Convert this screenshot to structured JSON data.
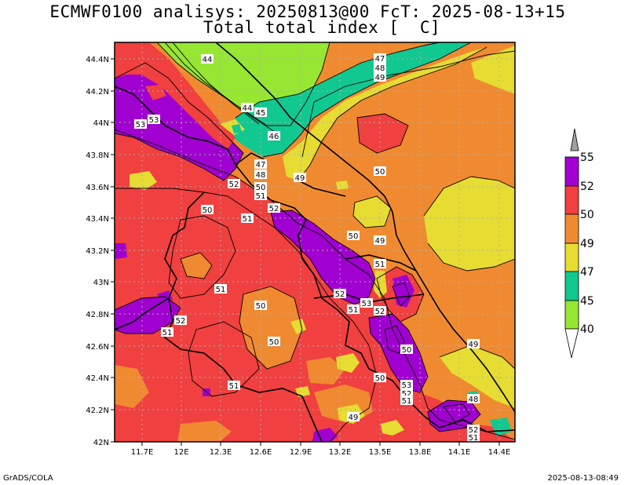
{
  "title_line1": "ECMWF0100 analisys: 20250813@00 FcT: 2025-08-13+15",
  "title_line2": "Total total index [  C]",
  "footer_left": "GrADS/COLA",
  "footer_right": "2025-08-13-08:49",
  "y_ticks": [
    "44.4N",
    "44.2N",
    "44N",
    "43.8N",
    "43.6N",
    "43.4N",
    "43.2N",
    "43N",
    "42.8N",
    "42.6N",
    "42.4N",
    "42.2N",
    "42N"
  ],
  "x_ticks": [
    "11.7E",
    "12E",
    "12.3E",
    "12.6E",
    "12.9E",
    "13.2E",
    "13.5E",
    "13.8E",
    "14.1E",
    "14.4E"
  ],
  "legend": {
    "levels": [
      "55",
      "52",
      "50",
      "49",
      "47",
      "45",
      "40"
    ],
    "colors": {
      "top": "#a0a0a0",
      "52-55": "#a000d0",
      "50-52": "#f04040",
      "49-50": "#f08a30",
      "47-49": "#e6dc32",
      "45-47": "#10c890",
      "40-45": "#96e632",
      "bottom": "#ffffff"
    }
  },
  "contour_labels": [
    {
      "text": "44"
    },
    {
      "text": "47"
    },
    {
      "text": "48"
    },
    {
      "text": "49"
    },
    {
      "text": "44"
    },
    {
      "text": "45"
    },
    {
      "text": "46"
    },
    {
      "text": "53"
    },
    {
      "text": "53"
    },
    {
      "text": "47"
    },
    {
      "text": "48"
    },
    {
      "text": "50"
    },
    {
      "text": "51"
    },
    {
      "text": "52"
    },
    {
      "text": "49"
    },
    {
      "text": "50"
    },
    {
      "text": "50"
    },
    {
      "text": "51"
    },
    {
      "text": "52"
    },
    {
      "text": "50"
    },
    {
      "text": "49"
    },
    {
      "text": "51"
    },
    {
      "text": "51"
    },
    {
      "text": "52"
    },
    {
      "text": "53"
    },
    {
      "text": "51"
    },
    {
      "text": "52"
    },
    {
      "text": "50"
    },
    {
      "text": "52"
    },
    {
      "text": "51"
    },
    {
      "text": "50"
    },
    {
      "text": "50"
    },
    {
      "text": "49"
    },
    {
      "text": "50"
    },
    {
      "text": "53"
    },
    {
      "text": "52"
    },
    {
      "text": "51"
    },
    {
      "text": "51"
    },
    {
      "text": "48"
    },
    {
      "text": "49"
    },
    {
      "text": "52"
    },
    {
      "text": "51"
    }
  ]
}
